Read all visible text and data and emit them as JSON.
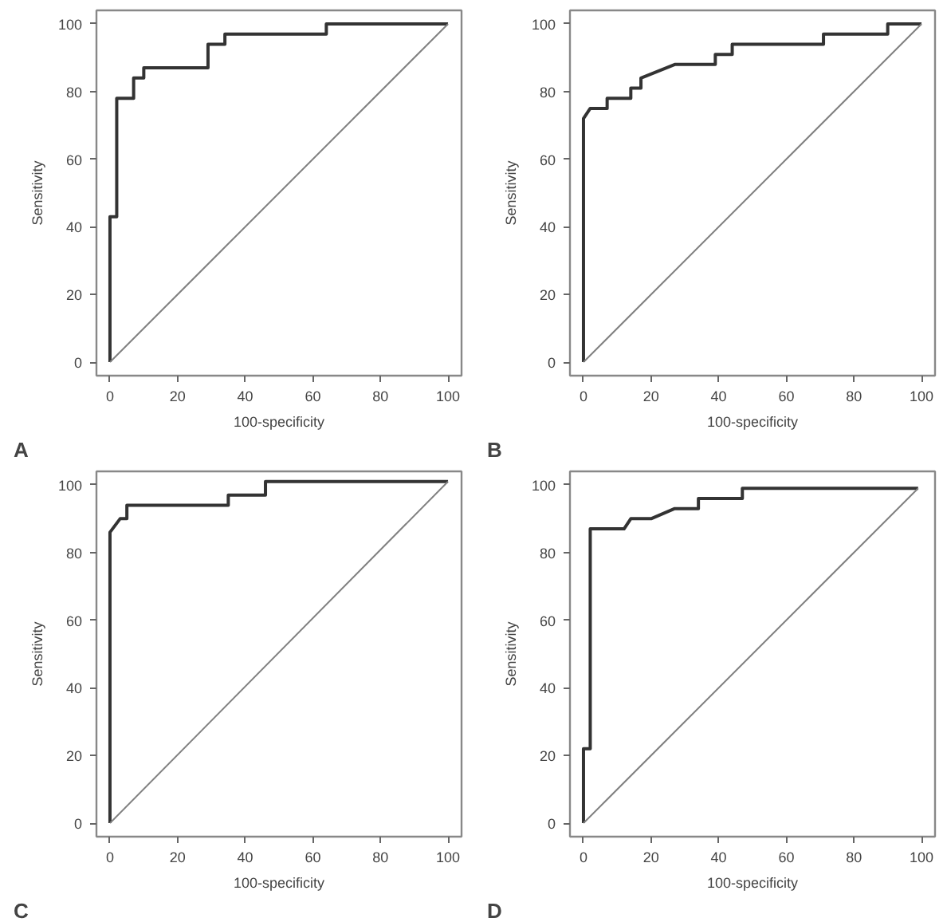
{
  "chart_data": [
    {
      "type": "line",
      "xlabel": "100-specificity",
      "ylabel": "Sensitivity",
      "annotations": [
        "A"
      ],
      "xlim": [
        -4,
        104
      ],
      "ylim": [
        -4,
        104
      ],
      "xticks": [
        0,
        20,
        40,
        60,
        80,
        100
      ],
      "yticks": [
        0,
        20,
        40,
        60,
        80,
        100
      ],
      "grid": false,
      "series": [
        {
          "color": "#333333",
          "x": [
            0,
            0,
            2,
            2,
            7,
            7,
            10,
            10,
            29,
            29,
            34,
            34,
            64,
            64,
            100
          ],
          "values": [
            0,
            43,
            43,
            78,
            78,
            84,
            84,
            87,
            87,
            94,
            94,
            97,
            97,
            100,
            100
          ]
        },
        {
          "color": "#808080",
          "x": [
            0,
            100
          ],
          "values": [
            0,
            100
          ]
        }
      ]
    },
    {
      "type": "line",
      "xlabel": "100-specificity",
      "ylabel": "Sensitivity",
      "annotations": [
        "B"
      ],
      "xlim": [
        -4,
        104
      ],
      "ylim": [
        -4,
        104
      ],
      "xticks": [
        0,
        20,
        40,
        60,
        80,
        100
      ],
      "yticks": [
        0,
        20,
        40,
        60,
        80,
        100
      ],
      "grid": false,
      "series": [
        {
          "color": "#333333",
          "x": [
            0,
            0,
            2,
            7,
            7,
            14,
            14,
            17,
            17,
            27,
            39,
            39,
            44,
            44,
            71,
            71,
            90,
            90,
            100
          ],
          "values": [
            0,
            72,
            75,
            75,
            78,
            78,
            81,
            81,
            84,
            88,
            88,
            91,
            91,
            94,
            94,
            97,
            97,
            100,
            100
          ]
        },
        {
          "color": "#808080",
          "x": [
            0,
            100
          ],
          "values": [
            0,
            100
          ]
        }
      ]
    },
    {
      "type": "line",
      "xlabel": "100-specificity",
      "ylabel": "Sensitivity",
      "annotations": [
        "C"
      ],
      "xlim": [
        -4,
        104
      ],
      "ylim": [
        -4,
        104
      ],
      "xticks": [
        0,
        20,
        40,
        60,
        80,
        100
      ],
      "yticks": [
        0,
        20,
        40,
        60,
        80,
        100
      ],
      "grid": false,
      "series": [
        {
          "color": "#333333",
          "x": [
            0,
            0,
            3,
            5,
            5,
            35,
            35,
            46,
            46,
            100
          ],
          "values": [
            0,
            86,
            90,
            90,
            94,
            94,
            97,
            97,
            101,
            101
          ]
        },
        {
          "color": "#808080",
          "x": [
            0,
            100
          ],
          "values": [
            0,
            101
          ]
        }
      ]
    },
    {
      "type": "line",
      "xlabel": "100-specificity",
      "ylabel": "Sensitivity",
      "annotations": [
        "D"
      ],
      "xlim": [
        -4,
        104
      ],
      "ylim": [
        -4,
        104
      ],
      "xticks": [
        0,
        20,
        40,
        60,
        80,
        100
      ],
      "yticks": [
        0,
        20,
        40,
        60,
        80,
        100
      ],
      "grid": false,
      "series": [
        {
          "color": "#333333",
          "x": [
            0,
            0,
            2,
            2,
            12,
            14,
            20,
            27,
            34,
            34,
            47,
            47,
            99
          ],
          "values": [
            0,
            22,
            22,
            87,
            87,
            90,
            90,
            93,
            93,
            96,
            96,
            99,
            99
          ]
        },
        {
          "color": "#808080",
          "x": [
            0,
            99
          ],
          "values": [
            0,
            99
          ]
        }
      ]
    }
  ]
}
